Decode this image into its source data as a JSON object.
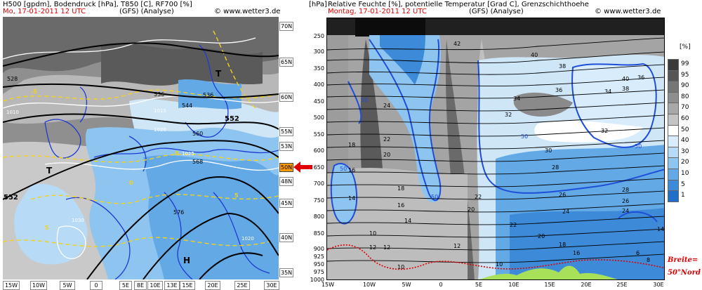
{
  "left_panel": {
    "title": "H500 [gpdm], Bodendruck [hPa], T850 [C], RF700 [%]",
    "date": "Mo, 17-01-2011  12 UTC",
    "model": "(GFS)  (Analyse)",
    "copyright": "© www.wetter3.de",
    "lat_labels": [
      "70N",
      "65N",
      "60N",
      "55N",
      "53N",
      "50N",
      "48N",
      "45N",
      "40N",
      "35N"
    ],
    "highlight_lat": "50N",
    "lon_labels": [
      "15W",
      "10W",
      "5W",
      "0",
      "5E",
      "8E",
      "10E",
      "13E",
      "15E",
      "20E",
      "25E",
      "30E"
    ],
    "contour_labels": [
      "528",
      "536",
      "536",
      "544",
      "552",
      "552",
      "560",
      "568",
      "576",
      "1010",
      "1015",
      "1020",
      "1025",
      "1030",
      "1020",
      "-5",
      "0",
      "5",
      "5",
      "0"
    ],
    "pressure_marks": [
      "T",
      "T",
      "H"
    ]
  },
  "right_panel": {
    "axis_unit": "[hPa]",
    "title": "Relative Feuchte [%], potentielle Temperatur [Grad C], Grenzschichthoehe",
    "date": "Montag, 17-01-2011  12 UTC",
    "model": "(GFS)  (Analyse)",
    "copyright": "© www.wetter3.de",
    "pressure_levels": [
      "250",
      "300",
      "350",
      "400",
      "450",
      "500",
      "550",
      "600",
      "650",
      "700",
      "750",
      "800",
      "850",
      "900",
      "925",
      "950",
      "975",
      "1000"
    ],
    "lon_labels": [
      "15W",
      "10W",
      "5W",
      "0",
      "5E",
      "10E",
      "15E",
      "20E",
      "25E",
      "30E"
    ],
    "isentrope_labels": [
      "42",
      "40",
      "38",
      "36",
      "34",
      "32",
      "30",
      "28",
      "26",
      "24",
      "22",
      "20",
      "18",
      "16",
      "14",
      "12",
      "10",
      "8",
      "6",
      "24",
      "22",
      "20",
      "18",
      "16",
      "14",
      "12",
      "10",
      "40",
      "38",
      "36",
      "34",
      "32",
      "28",
      "26",
      "24",
      "22",
      "20",
      "18",
      "16",
      "14",
      "12",
      "10"
    ],
    "humidity_labels": [
      "50",
      "50",
      "50",
      "50",
      "50"
    ],
    "breite_label": "Breite=",
    "nord_label": "50°Nord"
  },
  "legend": {
    "unit": "[%]",
    "levels": [
      "99",
      "95",
      "90",
      "80",
      "70",
      "60",
      "50",
      "40",
      "30",
      "20",
      "10",
      "5",
      "1"
    ],
    "colors": [
      "#3a3a3a",
      "#565656",
      "#767676",
      "#8e8e8e",
      "#a8a8a8",
      "#c4c4c4",
      "#ffffff",
      "#d8ecfb",
      "#b7daf6",
      "#8ec4f0",
      "#63a9e6",
      "#3d8bd8",
      "#1f6fc8"
    ]
  },
  "colors": {
    "arrow": "#e00000",
    "boundary_layer": "#e00000",
    "highlight": "#ff9a00",
    "contour": "#000000",
    "humidity": "#1f4ed8",
    "isotherm": "#f2d21a"
  }
}
